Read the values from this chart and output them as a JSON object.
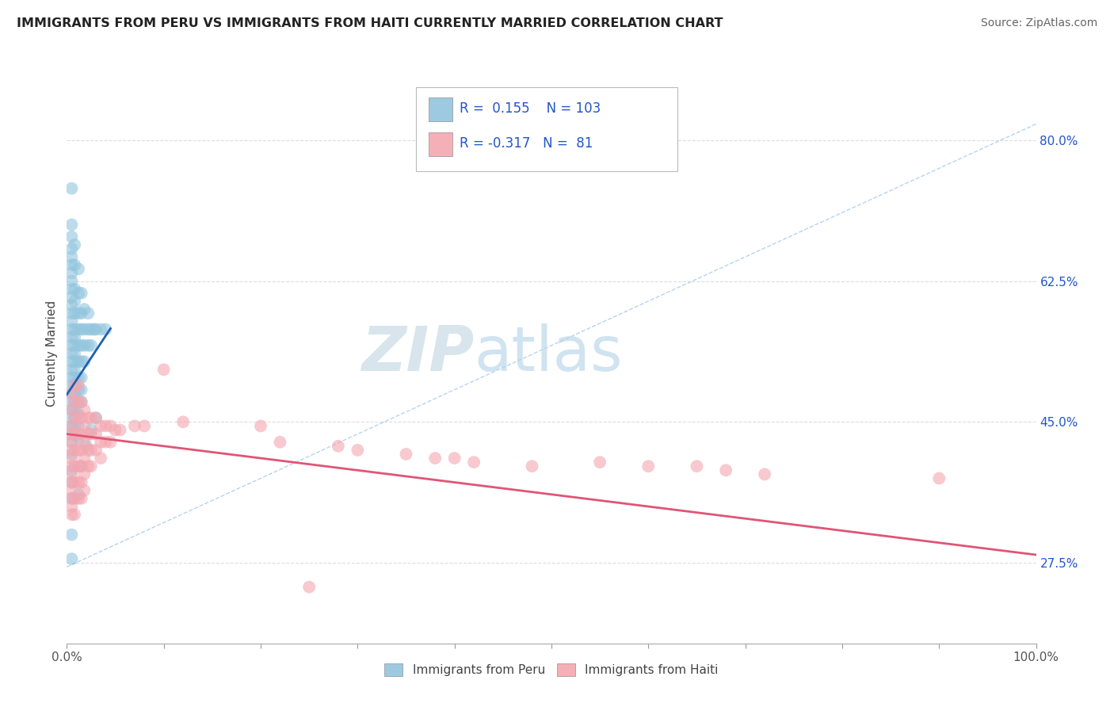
{
  "title": "IMMIGRANTS FROM PERU VS IMMIGRANTS FROM HAITI CURRENTLY MARRIED CORRELATION CHART",
  "source": "Source: ZipAtlas.com",
  "ylabel": "Currently Married",
  "xlim": [
    0.0,
    1.0
  ],
  "ylim": [
    0.175,
    0.895
  ],
  "yticks": [
    0.275,
    0.45,
    0.625,
    0.8
  ],
  "ytick_labels": [
    "27.5%",
    "45.0%",
    "62.5%",
    "80.0%"
  ],
  "xticks": [
    0.0,
    0.1,
    0.2,
    0.3,
    0.4,
    0.5,
    0.6,
    0.7,
    0.8,
    0.9,
    1.0
  ],
  "peru_color": "#92c5de",
  "haiti_color": "#f4a6b0",
  "peru_line_color": "#2060b0",
  "haiti_line_color": "#e05575",
  "legend_R_color": "#2255cc",
  "legend_N_color": "#cc2222",
  "peru_R": 0.155,
  "peru_N": 103,
  "haiti_R": -0.317,
  "haiti_N": 81,
  "background_color": "#ffffff",
  "grid_color": "#dddddd",
  "diag_color": "#aaccee",
  "watermark_zip_color": "#d0e4f0",
  "watermark_atlas_color": "#b8d8ee",
  "peru_scatter": [
    [
      0.005,
      0.74
    ],
    [
      0.005,
      0.695
    ],
    [
      0.005,
      0.68
    ],
    [
      0.005,
      0.665
    ],
    [
      0.005,
      0.655
    ],
    [
      0.005,
      0.645
    ],
    [
      0.005,
      0.635
    ],
    [
      0.005,
      0.625
    ],
    [
      0.005,
      0.615
    ],
    [
      0.005,
      0.605
    ],
    [
      0.005,
      0.595
    ],
    [
      0.005,
      0.585
    ],
    [
      0.005,
      0.575
    ],
    [
      0.005,
      0.565
    ],
    [
      0.005,
      0.555
    ],
    [
      0.005,
      0.545
    ],
    [
      0.005,
      0.535
    ],
    [
      0.005,
      0.525
    ],
    [
      0.005,
      0.515
    ],
    [
      0.005,
      0.505
    ],
    [
      0.005,
      0.495
    ],
    [
      0.005,
      0.485
    ],
    [
      0.005,
      0.475
    ],
    [
      0.005,
      0.465
    ],
    [
      0.005,
      0.455
    ],
    [
      0.005,
      0.445
    ],
    [
      0.005,
      0.435
    ],
    [
      0.005,
      0.425
    ],
    [
      0.005,
      0.41
    ],
    [
      0.005,
      0.39
    ],
    [
      0.005,
      0.375
    ],
    [
      0.005,
      0.355
    ],
    [
      0.008,
      0.67
    ],
    [
      0.008,
      0.645
    ],
    [
      0.008,
      0.615
    ],
    [
      0.008,
      0.6
    ],
    [
      0.008,
      0.585
    ],
    [
      0.008,
      0.565
    ],
    [
      0.008,
      0.555
    ],
    [
      0.008,
      0.545
    ],
    [
      0.008,
      0.535
    ],
    [
      0.008,
      0.525
    ],
    [
      0.008,
      0.515
    ],
    [
      0.008,
      0.505
    ],
    [
      0.008,
      0.495
    ],
    [
      0.008,
      0.485
    ],
    [
      0.008,
      0.475
    ],
    [
      0.008,
      0.465
    ],
    [
      0.008,
      0.455
    ],
    [
      0.008,
      0.445
    ],
    [
      0.012,
      0.64
    ],
    [
      0.012,
      0.61
    ],
    [
      0.012,
      0.585
    ],
    [
      0.012,
      0.565
    ],
    [
      0.012,
      0.545
    ],
    [
      0.012,
      0.525
    ],
    [
      0.012,
      0.505
    ],
    [
      0.012,
      0.49
    ],
    [
      0.012,
      0.475
    ],
    [
      0.012,
      0.46
    ],
    [
      0.012,
      0.445
    ],
    [
      0.012,
      0.43
    ],
    [
      0.015,
      0.61
    ],
    [
      0.015,
      0.585
    ],
    [
      0.015,
      0.565
    ],
    [
      0.015,
      0.545
    ],
    [
      0.015,
      0.525
    ],
    [
      0.015,
      0.505
    ],
    [
      0.015,
      0.49
    ],
    [
      0.015,
      0.475
    ],
    [
      0.018,
      0.59
    ],
    [
      0.018,
      0.565
    ],
    [
      0.018,
      0.545
    ],
    [
      0.018,
      0.525
    ],
    [
      0.022,
      0.585
    ],
    [
      0.022,
      0.565
    ],
    [
      0.022,
      0.545
    ],
    [
      0.025,
      0.565
    ],
    [
      0.025,
      0.545
    ],
    [
      0.028,
      0.565
    ],
    [
      0.03,
      0.565
    ],
    [
      0.035,
      0.565
    ],
    [
      0.04,
      0.565
    ],
    [
      0.005,
      0.28
    ],
    [
      0.005,
      0.31
    ],
    [
      0.012,
      0.36
    ],
    [
      0.015,
      0.395
    ],
    [
      0.02,
      0.42
    ],
    [
      0.025,
      0.44
    ],
    [
      0.03,
      0.455
    ]
  ],
  "haiti_scatter": [
    [
      0.005,
      0.485
    ],
    [
      0.005,
      0.465
    ],
    [
      0.005,
      0.445
    ],
    [
      0.005,
      0.435
    ],
    [
      0.005,
      0.425
    ],
    [
      0.005,
      0.415
    ],
    [
      0.005,
      0.405
    ],
    [
      0.005,
      0.395
    ],
    [
      0.005,
      0.385
    ],
    [
      0.005,
      0.375
    ],
    [
      0.005,
      0.365
    ],
    [
      0.005,
      0.355
    ],
    [
      0.005,
      0.345
    ],
    [
      0.005,
      0.335
    ],
    [
      0.008,
      0.495
    ],
    [
      0.008,
      0.475
    ],
    [
      0.008,
      0.455
    ],
    [
      0.008,
      0.435
    ],
    [
      0.008,
      0.415
    ],
    [
      0.008,
      0.395
    ],
    [
      0.008,
      0.375
    ],
    [
      0.008,
      0.355
    ],
    [
      0.008,
      0.335
    ],
    [
      0.012,
      0.495
    ],
    [
      0.012,
      0.475
    ],
    [
      0.012,
      0.455
    ],
    [
      0.012,
      0.435
    ],
    [
      0.012,
      0.415
    ],
    [
      0.012,
      0.395
    ],
    [
      0.012,
      0.375
    ],
    [
      0.012,
      0.355
    ],
    [
      0.015,
      0.475
    ],
    [
      0.015,
      0.455
    ],
    [
      0.015,
      0.435
    ],
    [
      0.015,
      0.415
    ],
    [
      0.015,
      0.395
    ],
    [
      0.015,
      0.375
    ],
    [
      0.015,
      0.355
    ],
    [
      0.018,
      0.465
    ],
    [
      0.018,
      0.445
    ],
    [
      0.018,
      0.425
    ],
    [
      0.018,
      0.405
    ],
    [
      0.018,
      0.385
    ],
    [
      0.018,
      0.365
    ],
    [
      0.022,
      0.455
    ],
    [
      0.022,
      0.435
    ],
    [
      0.022,
      0.415
    ],
    [
      0.022,
      0.395
    ],
    [
      0.025,
      0.455
    ],
    [
      0.025,
      0.435
    ],
    [
      0.025,
      0.415
    ],
    [
      0.025,
      0.395
    ],
    [
      0.03,
      0.455
    ],
    [
      0.03,
      0.435
    ],
    [
      0.03,
      0.415
    ],
    [
      0.035,
      0.445
    ],
    [
      0.035,
      0.425
    ],
    [
      0.035,
      0.405
    ],
    [
      0.04,
      0.445
    ],
    [
      0.04,
      0.425
    ],
    [
      0.045,
      0.445
    ],
    [
      0.045,
      0.425
    ],
    [
      0.05,
      0.44
    ],
    [
      0.055,
      0.44
    ],
    [
      0.07,
      0.445
    ],
    [
      0.08,
      0.445
    ],
    [
      0.12,
      0.45
    ],
    [
      0.2,
      0.445
    ],
    [
      0.22,
      0.425
    ],
    [
      0.28,
      0.42
    ],
    [
      0.3,
      0.415
    ],
    [
      0.35,
      0.41
    ],
    [
      0.38,
      0.405
    ],
    [
      0.4,
      0.405
    ],
    [
      0.42,
      0.4
    ],
    [
      0.48,
      0.395
    ],
    [
      0.55,
      0.4
    ],
    [
      0.6,
      0.395
    ],
    [
      0.65,
      0.395
    ],
    [
      0.68,
      0.39
    ],
    [
      0.72,
      0.385
    ],
    [
      0.9,
      0.38
    ],
    [
      0.1,
      0.515
    ],
    [
      0.25,
      0.245
    ]
  ]
}
